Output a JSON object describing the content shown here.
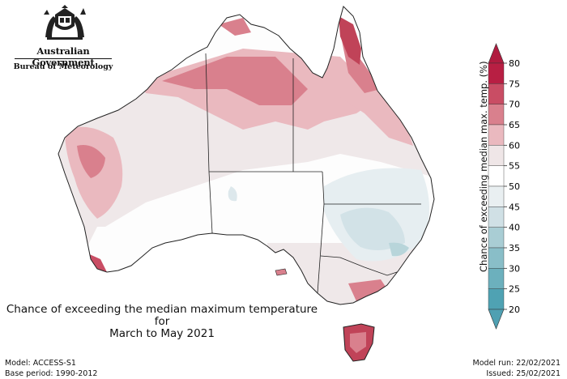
{
  "header": {
    "government": "Australian Government",
    "agency": "Bureau of Meteorology"
  },
  "map": {
    "title_line1": "Chance of exceeding the median maximum temperature for",
    "title_line2": "March to May 2021",
    "projection": "Australia"
  },
  "legend": {
    "title": "Chance of exceeding median max. temp. (%)",
    "ticks": [
      "80",
      "75",
      "70",
      "65",
      "60",
      "55",
      "50",
      "45",
      "40",
      "35",
      "30",
      "25",
      "20"
    ],
    "colors": [
      "#b81f43",
      "#c94d64",
      "#d9808d",
      "#eab9bf",
      "#efe6e7",
      "#ffffff",
      "#e9eff1",
      "#d0e0e5",
      "#a9cdd4",
      "#89bec8",
      "#6cb0bd",
      "#4fa2b3"
    ],
    "over_color": "#b01b3f",
    "under_color": "#4fa0b2"
  },
  "footer": {
    "model": "Model: ACCESS-S1",
    "base_period": "Base period: 1990-2012",
    "model_run": "Model run: 22/02/2021",
    "issued": "Issued: 25/02/2021"
  }
}
